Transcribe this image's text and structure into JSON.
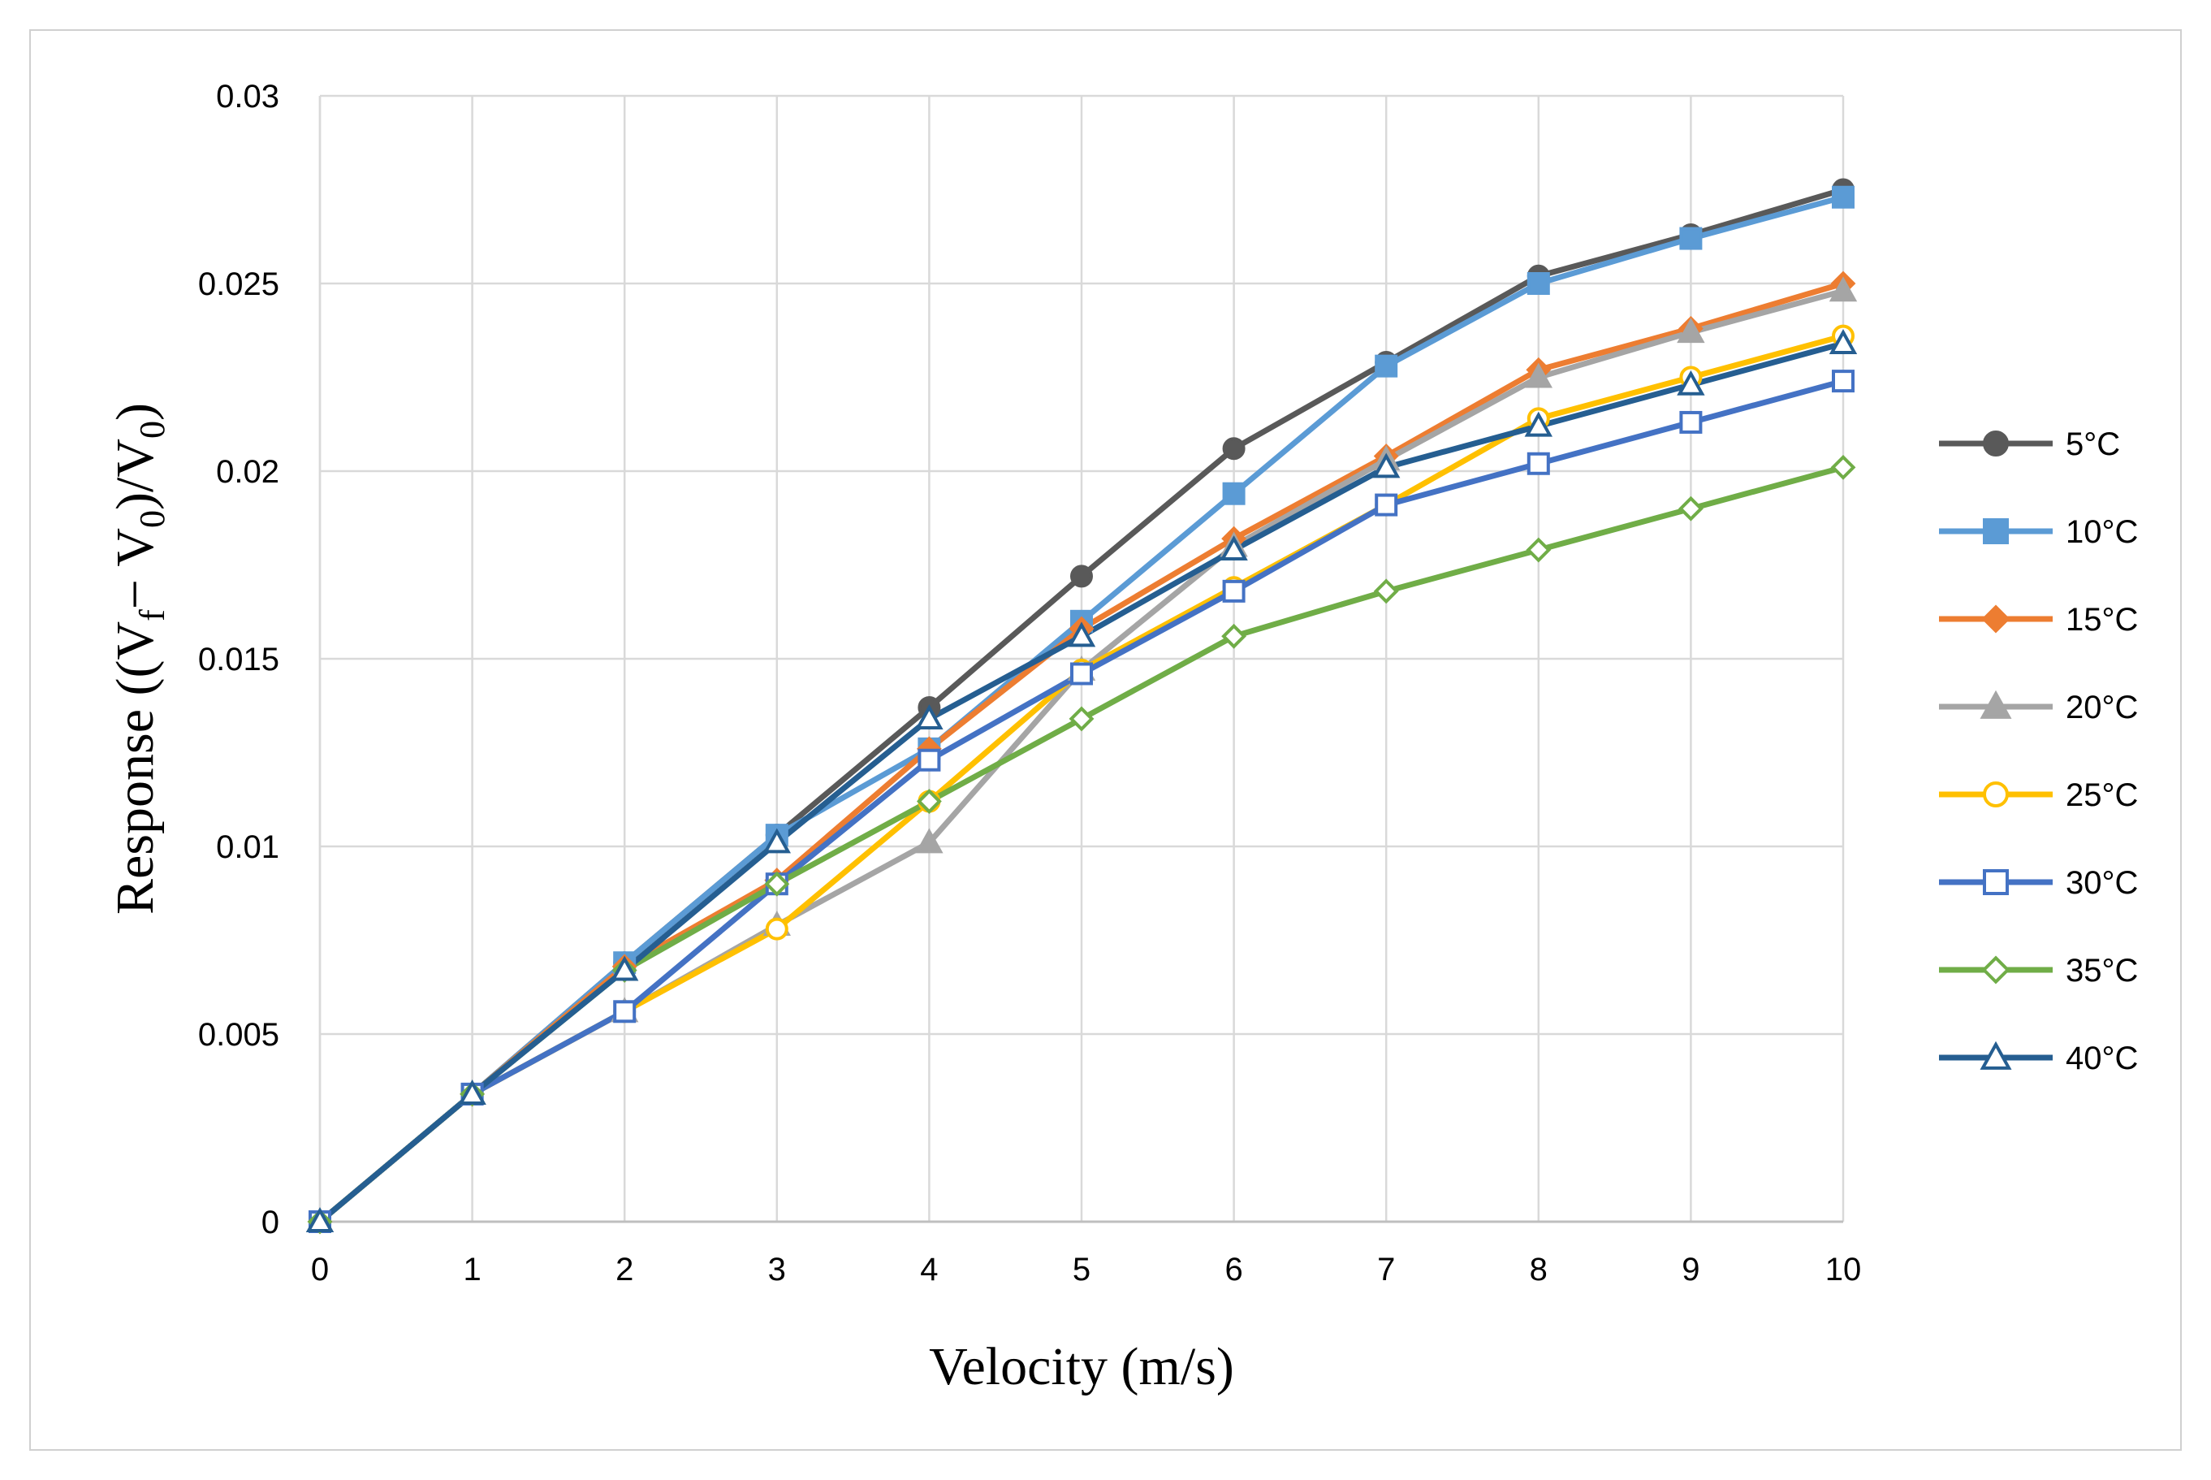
{
  "chart_data": {
    "type": "line",
    "title": "",
    "xlabel": "Velocity (m/s)",
    "ylabel": {
      "prefix": "Response ((V",
      "sub1": "f",
      "mid": "− V",
      "sub2": "0",
      "mid2": ")/V",
      "sub3": "0",
      "suffix": ")"
    },
    "x": [
      0,
      1,
      2,
      3,
      4,
      5,
      6,
      7,
      8,
      9,
      10
    ],
    "xlim": [
      0,
      10
    ],
    "ylim": [
      0,
      0.03
    ],
    "x_ticks": [
      "0",
      "1",
      "2",
      "3",
      "4",
      "5",
      "6",
      "7",
      "8",
      "9",
      "10"
    ],
    "y_ticks": [
      {
        "value": 0,
        "label": "0"
      },
      {
        "value": 0.005,
        "label": "0.005"
      },
      {
        "value": 0.01,
        "label": "0.01"
      },
      {
        "value": 0.015,
        "label": "0.015"
      },
      {
        "value": 0.02,
        "label": "0.02"
      },
      {
        "value": 0.025,
        "label": "0.025"
      },
      {
        "value": 0.03,
        "label": "0.03"
      }
    ],
    "grid": true,
    "legend_position": "right",
    "series": [
      {
        "name": "5°C",
        "color": "#595959",
        "marker": "circle",
        "filled": true,
        "values": [
          0,
          0.0034,
          0.0069,
          0.0103,
          0.0137,
          0.0172,
          0.0206,
          0.0229,
          0.0252,
          0.0263,
          0.0275
        ]
      },
      {
        "name": "10°C",
        "color": "#5b9bd5",
        "marker": "square",
        "filled": true,
        "values": [
          0,
          0.0034,
          0.0069,
          0.0103,
          0.0126,
          0.016,
          0.0194,
          0.0228,
          0.025,
          0.0262,
          0.0273
        ]
      },
      {
        "name": "15°C",
        "color": "#ed7d31",
        "marker": "diamond",
        "filled": true,
        "values": [
          0,
          0.0034,
          0.0068,
          0.0091,
          0.0126,
          0.0158,
          0.0182,
          0.0204,
          0.0227,
          0.0238,
          0.025
        ]
      },
      {
        "name": "20°C",
        "color": "#a5a5a5",
        "marker": "triangle",
        "filled": true,
        "values": [
          0,
          0.0034,
          0.0056,
          0.0079,
          0.0101,
          0.0147,
          0.018,
          0.0203,
          0.0225,
          0.0237,
          0.0248
        ]
      },
      {
        "name": "25°C",
        "color": "#ffc000",
        "marker": "circle-open",
        "filled": false,
        "values": [
          0,
          0.0034,
          0.0056,
          0.0078,
          0.0112,
          0.0147,
          0.0169,
          0.0191,
          0.0214,
          0.0225,
          0.0236
        ]
      },
      {
        "name": "30°C",
        "color": "#4472c4",
        "marker": "square-open",
        "filled": false,
        "values": [
          0,
          0.0034,
          0.0056,
          0.009,
          0.0123,
          0.0146,
          0.0168,
          0.0191,
          0.0202,
          0.0213,
          0.0224
        ]
      },
      {
        "name": "35°C",
        "color": "#70ad47",
        "marker": "diamond-open",
        "filled": false,
        "values": [
          0,
          0.0034,
          0.0067,
          0.009,
          0.0112,
          0.0134,
          0.0156,
          0.0168,
          0.0179,
          0.019,
          0.0201
        ]
      },
      {
        "name": "40°C",
        "color": "#255e91",
        "marker": "triangle-open",
        "filled": false,
        "values": [
          0,
          0.0034,
          0.0067,
          0.0101,
          0.0134,
          0.0156,
          0.0179,
          0.0201,
          0.0212,
          0.0223,
          0.0234
        ]
      }
    ]
  }
}
